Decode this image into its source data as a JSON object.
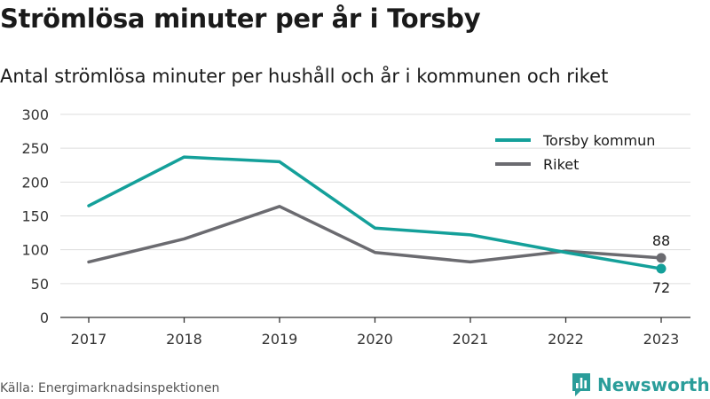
{
  "header": {
    "title": "Strömlösa minuter per år i Torsby",
    "subtitle": "Antal strömlösa minuter per hushåll och år i kommunen och riket"
  },
  "footer": {
    "source": "Källa: Energimarknadsinspektionen",
    "brand": "Newsworthy"
  },
  "icons": {
    "brand_logo": "newsworthy-logo-icon"
  },
  "colors": {
    "torsby": "#14a09a",
    "riket": "#6b6b70",
    "grid": "#dddddd",
    "axis": "#333333",
    "brand": "#2a9d9a"
  },
  "chart_data": {
    "type": "line",
    "x": [
      2017,
      2018,
      2019,
      2020,
      2021,
      2022,
      2023
    ],
    "x_tick_labels": [
      "2017",
      "2018",
      "2019",
      "2020",
      "2021",
      "2022",
      "2023"
    ],
    "ylim": [
      0,
      300
    ],
    "y_ticks": [
      0,
      50,
      100,
      150,
      200,
      250,
      300
    ],
    "y_tick_labels": [
      "0",
      "50",
      "100",
      "150",
      "200",
      "250",
      "300"
    ],
    "grid": true,
    "legend_position": "top-right",
    "series": [
      {
        "name": "Torsby kommun",
        "values": [
          165,
          237,
          230,
          132,
          122,
          96,
          72
        ],
        "end_label": "72"
      },
      {
        "name": "Riket",
        "values": [
          82,
          116,
          164,
          96,
          82,
          98,
          88
        ],
        "end_label": "88"
      }
    ]
  }
}
